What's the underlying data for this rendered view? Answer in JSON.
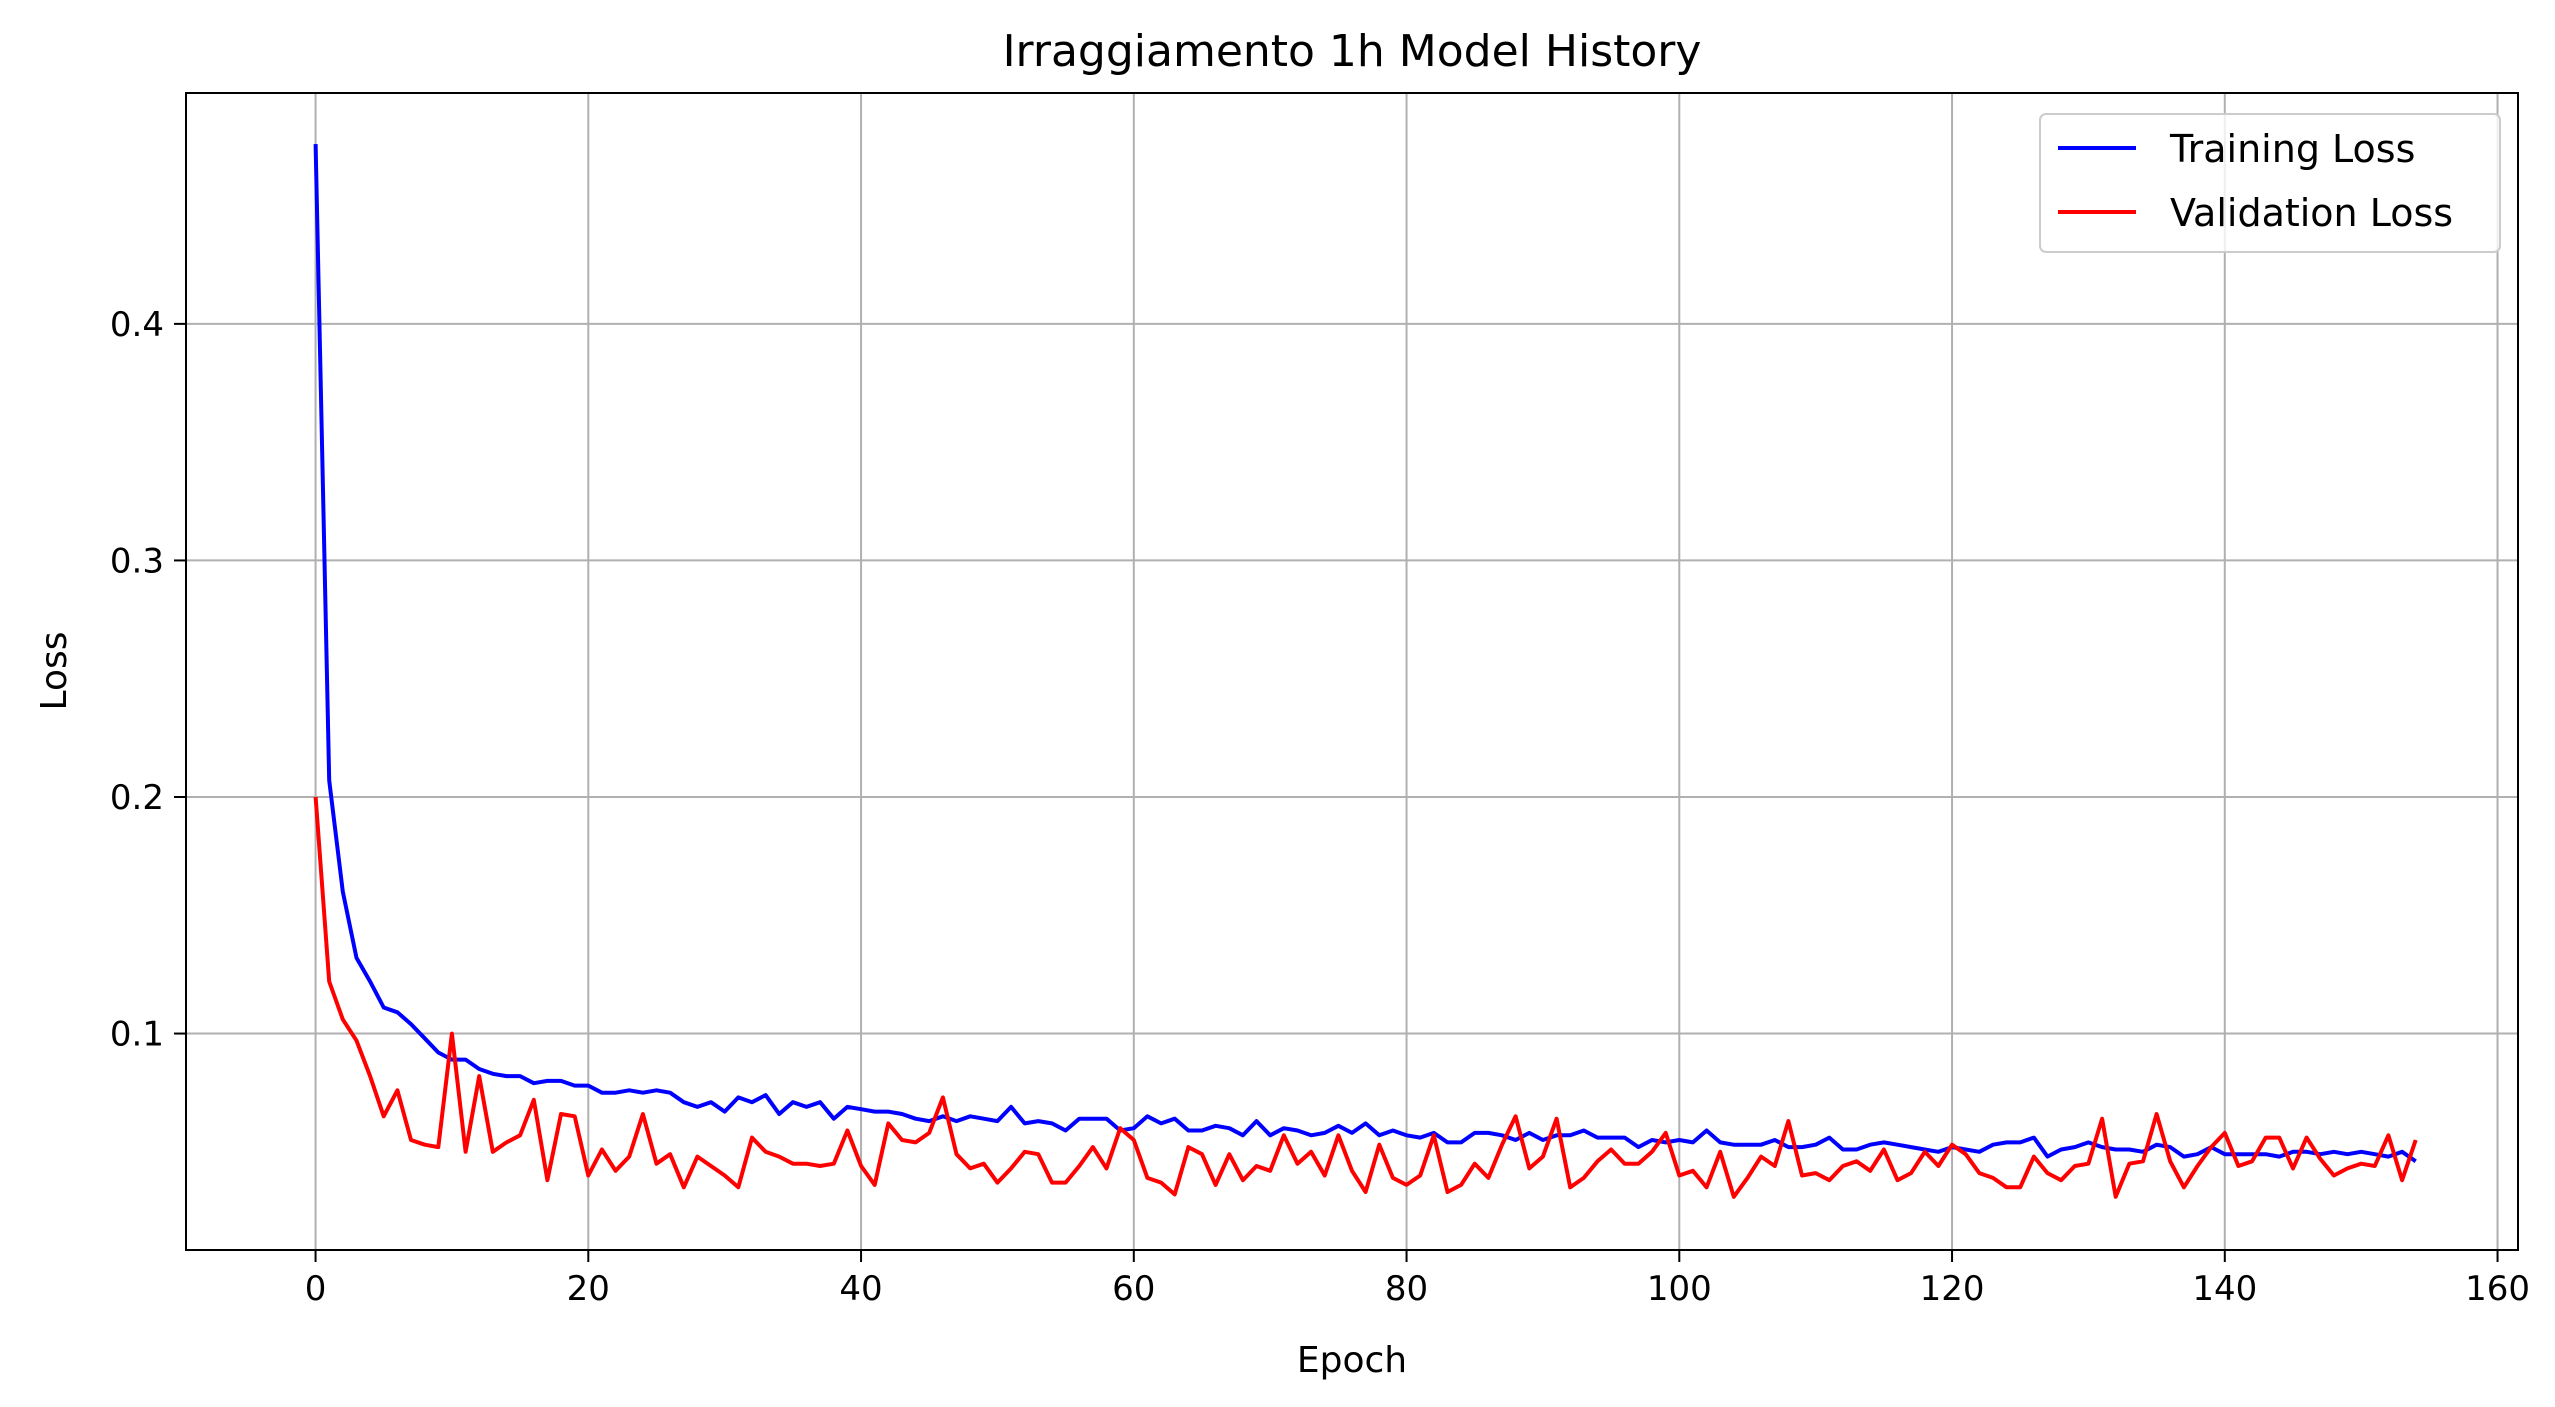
{
  "chart_data": {
    "type": "line",
    "title": "Irraggiamento 1h Model History",
    "xlabel": "Epoch",
    "ylabel": "Loss",
    "xlim": [
      -9.5,
      161.5
    ],
    "ylim": [
      0.0085,
      0.4976
    ],
    "xticks": [
      0,
      20,
      40,
      60,
      80,
      100,
      120,
      140,
      160
    ],
    "yticks": [
      0.1,
      0.2,
      0.3,
      0.4
    ],
    "xtick_labels": [
      "0",
      "20",
      "40",
      "60",
      "80",
      "100",
      "120",
      "140",
      "160"
    ],
    "ytick_labels": [
      "0.1",
      "0.2",
      "0.3",
      "0.4"
    ],
    "grid": true,
    "legend_position": "top-right",
    "series": [
      {
        "name": "Training Loss",
        "color": "#0000ff",
        "values": [
          0.476,
          0.207,
          0.16,
          0.132,
          0.122,
          0.111,
          0.109,
          0.104,
          0.098,
          0.092,
          0.089,
          0.089,
          0.085,
          0.083,
          0.082,
          0.082,
          0.079,
          0.08,
          0.08,
          0.078,
          0.078,
          0.075,
          0.075,
          0.076,
          0.075,
          0.076,
          0.075,
          0.071,
          0.069,
          0.071,
          0.067,
          0.073,
          0.071,
          0.074,
          0.066,
          0.071,
          0.069,
          0.071,
          0.064,
          0.069,
          0.068,
          0.067,
          0.067,
          0.066,
          0.064,
          0.063,
          0.065,
          0.063,
          0.065,
          0.064,
          0.063,
          0.069,
          0.062,
          0.063,
          0.062,
          0.059,
          0.064,
          0.064,
          0.064,
          0.059,
          0.06,
          0.065,
          0.062,
          0.064,
          0.059,
          0.059,
          0.061,
          0.06,
          0.057,
          0.063,
          0.057,
          0.06,
          0.059,
          0.057,
          0.058,
          0.061,
          0.058,
          0.062,
          0.057,
          0.059,
          0.057,
          0.056,
          0.058,
          0.054,
          0.054,
          0.058,
          0.058,
          0.057,
          0.055,
          0.058,
          0.055,
          0.057,
          0.057,
          0.059,
          0.056,
          0.056,
          0.056,
          0.052,
          0.055,
          0.054,
          0.055,
          0.054,
          0.059,
          0.054,
          0.053,
          0.053,
          0.053,
          0.055,
          0.052,
          0.052,
          0.053,
          0.056,
          0.051,
          0.051,
          0.053,
          0.054,
          0.053,
          0.052,
          0.051,
          0.05,
          0.052,
          0.051,
          0.05,
          0.053,
          0.054,
          0.054,
          0.056,
          0.048,
          0.051,
          0.052,
          0.054,
          0.052,
          0.051,
          0.051,
          0.05,
          0.053,
          0.052,
          0.048,
          0.049,
          0.052,
          0.049,
          0.049,
          0.049,
          0.049,
          0.048,
          0.05,
          0.05,
          0.049,
          0.05,
          0.049,
          0.05,
          0.049,
          0.048,
          0.05,
          0.046
        ]
      },
      {
        "name": "Validation Loss",
        "color": "#ff0000",
        "values": [
          0.2,
          0.122,
          0.106,
          0.097,
          0.082,
          0.065,
          0.076,
          0.055,
          0.053,
          0.052,
          0.1,
          0.05,
          0.082,
          0.05,
          0.054,
          0.057,
          0.072,
          0.038,
          0.066,
          0.065,
          0.04,
          0.051,
          0.042,
          0.048,
          0.066,
          0.045,
          0.049,
          0.035,
          0.048,
          0.044,
          0.04,
          0.035,
          0.056,
          0.05,
          0.048,
          0.045,
          0.045,
          0.044,
          0.045,
          0.059,
          0.044,
          0.036,
          0.062,
          0.055,
          0.054,
          0.058,
          0.073,
          0.049,
          0.043,
          0.045,
          0.037,
          0.043,
          0.05,
          0.049,
          0.037,
          0.037,
          0.044,
          0.052,
          0.043,
          0.06,
          0.055,
          0.039,
          0.037,
          0.032,
          0.052,
          0.049,
          0.036,
          0.049,
          0.038,
          0.044,
          0.042,
          0.057,
          0.045,
          0.05,
          0.04,
          0.057,
          0.042,
          0.033,
          0.053,
          0.039,
          0.036,
          0.04,
          0.057,
          0.033,
          0.036,
          0.045,
          0.039,
          0.053,
          0.065,
          0.043,
          0.048,
          0.064,
          0.035,
          0.039,
          0.046,
          0.051,
          0.045,
          0.045,
          0.05,
          0.058,
          0.04,
          0.042,
          0.035,
          0.05,
          0.031,
          0.039,
          0.048,
          0.044,
          0.063,
          0.04,
          0.041,
          0.038,
          0.044,
          0.046,
          0.042,
          0.051,
          0.038,
          0.041,
          0.05,
          0.044,
          0.053,
          0.049,
          0.041,
          0.039,
          0.035,
          0.035,
          0.048,
          0.041,
          0.038,
          0.044,
          0.045,
          0.064,
          0.031,
          0.045,
          0.046,
          0.066,
          0.046,
          0.035,
          0.044,
          0.052,
          0.058,
          0.044,
          0.046,
          0.056,
          0.056,
          0.043,
          0.056,
          0.047,
          0.04,
          0.043,
          0.045,
          0.044,
          0.057,
          0.038,
          0.055
        ]
      }
    ]
  }
}
